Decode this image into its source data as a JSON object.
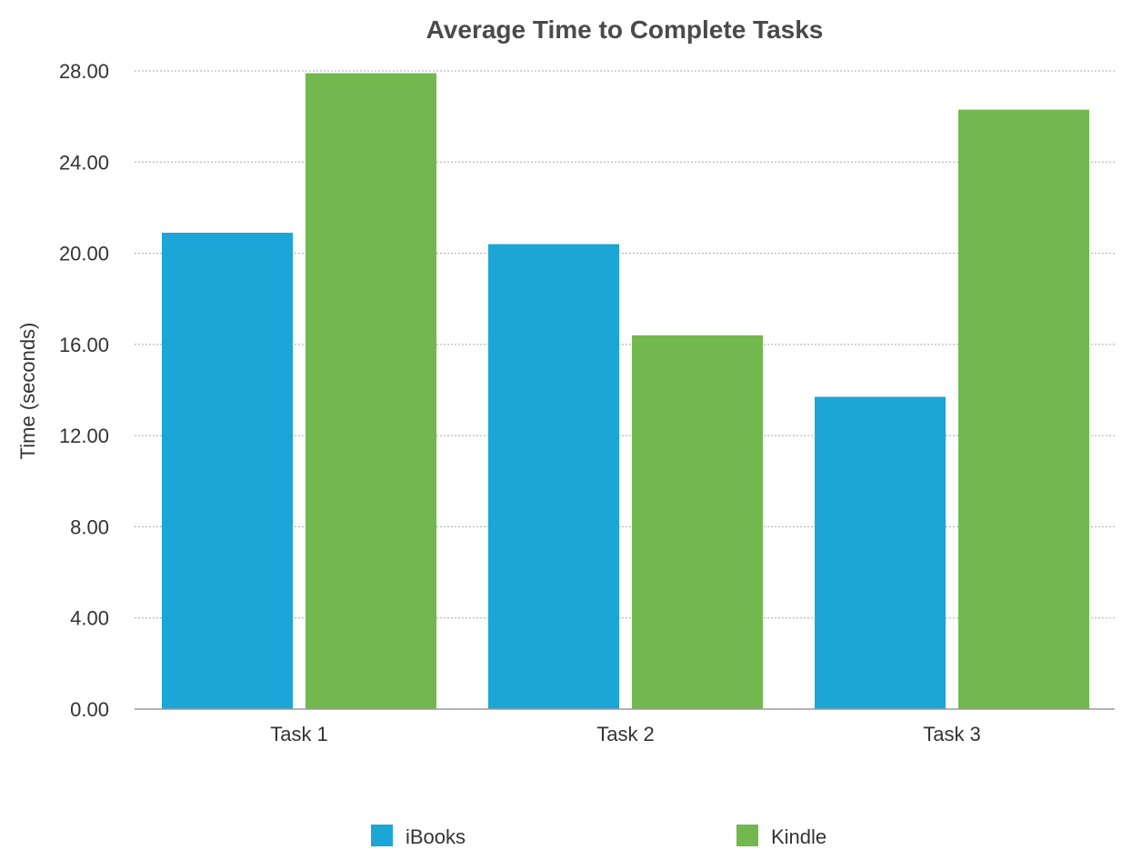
{
  "chart_data": {
    "type": "bar",
    "title": "Average Time to Complete Tasks",
    "xlabel": "",
    "ylabel": "Time (seconds)",
    "categories": [
      "Task 1",
      "Task 2",
      "Task 3"
    ],
    "series": [
      {
        "name": "iBooks",
        "values": [
          20.9,
          20.4,
          13.7
        ],
        "color": "#1ca5d7"
      },
      {
        "name": "Kindle",
        "values": [
          27.9,
          16.4,
          26.3
        ],
        "color": "#72b84e"
      }
    ],
    "ylim": [
      0,
      28
    ],
    "yticks": [
      0,
      4,
      8,
      12,
      16,
      20,
      24,
      28
    ],
    "ytick_labels": [
      "0.00",
      "4.00",
      "8.00",
      "12.00",
      "16.00",
      "20.00",
      "24.00",
      "28.00"
    ],
    "grid": true,
    "legend_position": "bottom"
  }
}
